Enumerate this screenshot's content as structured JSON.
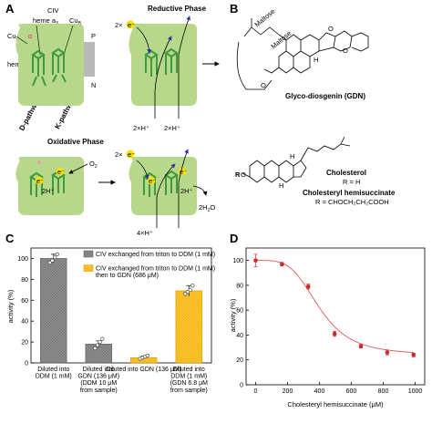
{
  "panels": {
    "a": "A",
    "b": "B",
    "c": "C",
    "d": "D"
  },
  "panel_a": {
    "civ": "CIV",
    "heme_a3": "heme a",
    "heme_a3_sub": "3",
    "cub": "Cu",
    "cub_sub": "B",
    "cua": "Cu",
    "cua_sub": "A",
    "heme_a": "heme a",
    "d_pathway": "D-pathway",
    "k_pathway": "K-pathway",
    "p_side": "P",
    "n_side": "N",
    "reductive_phase": "Reductive Phase",
    "oxidative_phase": "Oxidative Phase",
    "electrons_2": "2×",
    "protons_2a": "2×H⁺",
    "protons_2b": "2×H⁺",
    "o2": "O",
    "o2_sub": "2",
    "h2o": "2H",
    "h2o_tail": "O",
    "h2o_sub": "2",
    "protons_4": "4×H⁺",
    "two_h_a": "2H⁺",
    "two_h_b": "2H⁺",
    "e_label": "e⁻"
  },
  "panel_b": {
    "maltose_1": "Maltose",
    "maltose_2": "Maltose",
    "gdn_name": "Glyco-diosgenin (GDN)",
    "cholesterol": "Cholesterol",
    "chol_r": "R = H",
    "chs": "Cholesteryl hemisuccinate",
    "chs_r": "R = CHOCH₂CH₂COOH",
    "r_group": "R",
    "h_label": "H",
    "o_label": "O"
  },
  "colors": {
    "membrane": "#b7d88a",
    "heme": "#3d9a3d",
    "arrow_blue": "#2f2fa8",
    "reductive_red": "#d9443c",
    "oxidative_purple": "#9b3fb5",
    "electron_yellow": "#f5e000",
    "bar_gray": "#8c8c8c",
    "bar_yellow": "#ffc433",
    "fit_red": "#e05a5a",
    "point_red": "#cc2a2a",
    "gdn_title_blue": "#1a1a6e"
  },
  "chart_data": [
    {
      "type": "bar",
      "panel": "C",
      "ylabel": "activity (%)",
      "ylim": [
        0,
        110
      ],
      "yticks": [
        0,
        20,
        40,
        60,
        80,
        100
      ],
      "categories": [
        [
          "Diluted into",
          "DDM (1 mM)"
        ],
        [
          "Diluted into",
          "GDN (136 μM)",
          "(DDM 10 μM",
          "from sample)"
        ],
        [
          "Diluted into GDN (136 μM)"
        ],
        [
          "Diluted into",
          "DDM (1 mM)",
          "(GDN 6.8 μM",
          "from sample)"
        ]
      ],
      "values": [
        100,
        18,
        5,
        69
      ],
      "errors": [
        4,
        3,
        1.5,
        5
      ],
      "bar_group": [
        "gray",
        "gray",
        "yellow",
        "yellow"
      ],
      "points": [
        [
          96,
          98,
          101,
          104
        ],
        [
          14,
          17,
          20,
          23
        ],
        [
          4,
          5,
          6,
          7
        ],
        [
          66,
          68,
          70,
          74
        ]
      ],
      "legend": [
        {
          "key": "gray",
          "lines": [
            "CIV exchanged from triton to DDM (1 mM)"
          ]
        },
        {
          "key": "yellow",
          "lines": [
            "CIV exchanged from triton to DDM (1 mM)",
            "then to GDN (686 μM)"
          ]
        }
      ],
      "legend_position": "top-right"
    },
    {
      "type": "scatter",
      "panel": "D",
      "xlabel": "Cholesteryl hemisuccinate (μM)",
      "ylabel": "activity (%)",
      "xlim": [
        -60,
        1060
      ],
      "ylim": [
        0,
        110
      ],
      "xticks": [
        0,
        200,
        400,
        600,
        800,
        1000
      ],
      "yticks": [
        0,
        20,
        40,
        60,
        80,
        100
      ],
      "x": [
        0,
        165,
        330,
        495,
        660,
        825,
        990
      ],
      "y": [
        100,
        97,
        79,
        41,
        31,
        26,
        24
      ],
      "errors": [
        5,
        1.5,
        2,
        2,
        1.5,
        2,
        1.5
      ],
      "fit": {
        "bottom": 24,
        "top": 100,
        "ec50": 400,
        "hill": 4
      }
    }
  ]
}
